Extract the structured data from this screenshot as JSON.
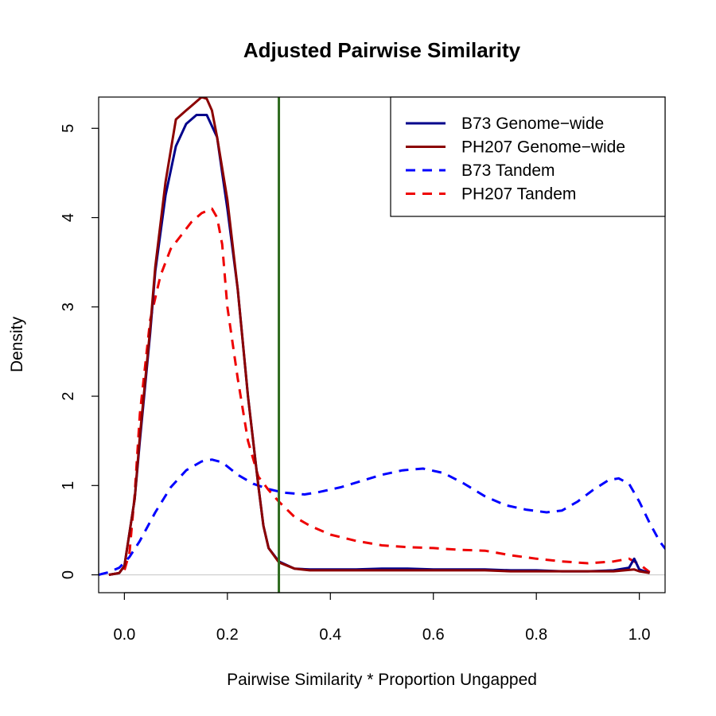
{
  "chart_data": {
    "type": "line",
    "title": "Adjusted Pairwise Similarity",
    "xlabel": "Pairwise Similarity * Proportion Ungapped",
    "ylabel": "Density",
    "xlim": [
      -0.05,
      1.05
    ],
    "ylim": [
      -0.2,
      5.35
    ],
    "xticks": [
      "0.0",
      "0.2",
      "0.4",
      "0.6",
      "0.8",
      "1.0"
    ],
    "yticks": [
      "0",
      "1",
      "2",
      "3",
      "4",
      "5"
    ],
    "reference_line": {
      "x": 0.3,
      "color": "#2e6b1f"
    },
    "baseline_color": "#cccccc",
    "legend_position": "top-right",
    "series": [
      {
        "name": "B73 Genome−wide",
        "color": "#00008b",
        "dash": false,
        "x": [
          -0.03,
          -0.01,
          0.0,
          0.02,
          0.03,
          0.05,
          0.06,
          0.08,
          0.1,
          0.12,
          0.14,
          0.16,
          0.18,
          0.19,
          0.2,
          0.22,
          0.24,
          0.26,
          0.27,
          0.28,
          0.3,
          0.33,
          0.36,
          0.4,
          0.45,
          0.5,
          0.55,
          0.6,
          0.65,
          0.7,
          0.75,
          0.8,
          0.85,
          0.9,
          0.95,
          0.98,
          0.99,
          1.0,
          1.02
        ],
        "y": [
          0.0,
          0.02,
          0.1,
          0.85,
          1.5,
          2.7,
          3.4,
          4.25,
          4.8,
          5.05,
          5.15,
          5.15,
          4.9,
          4.5,
          4.1,
          3.2,
          2.0,
          1.0,
          0.55,
          0.3,
          0.15,
          0.07,
          0.06,
          0.06,
          0.06,
          0.07,
          0.07,
          0.06,
          0.06,
          0.06,
          0.05,
          0.05,
          0.04,
          0.04,
          0.05,
          0.08,
          0.18,
          0.06,
          0.02
        ]
      },
      {
        "name": "PH207 Genome−wide",
        "color": "#8b0000",
        "dash": false,
        "x": [
          -0.03,
          -0.01,
          0.0,
          0.02,
          0.03,
          0.05,
          0.06,
          0.08,
          0.1,
          0.12,
          0.13,
          0.15,
          0.16,
          0.17,
          0.18,
          0.2,
          0.22,
          0.24,
          0.26,
          0.27,
          0.28,
          0.3,
          0.33,
          0.36,
          0.4,
          0.45,
          0.5,
          0.55,
          0.6,
          0.65,
          0.7,
          0.75,
          0.8,
          0.85,
          0.9,
          0.95,
          0.99,
          1.0,
          1.02
        ],
        "y": [
          0.0,
          0.02,
          0.1,
          0.85,
          1.55,
          2.75,
          3.45,
          4.4,
          5.1,
          5.2,
          5.25,
          5.35,
          5.33,
          5.2,
          4.9,
          4.2,
          3.2,
          2.0,
          1.0,
          0.55,
          0.3,
          0.14,
          0.07,
          0.05,
          0.05,
          0.05,
          0.05,
          0.05,
          0.05,
          0.05,
          0.05,
          0.04,
          0.04,
          0.04,
          0.04,
          0.04,
          0.06,
          0.04,
          0.02
        ]
      },
      {
        "name": "B73 Tandem",
        "color": "#0000ff",
        "dash": true,
        "x": [
          -0.05,
          -0.03,
          -0.01,
          0.01,
          0.03,
          0.06,
          0.09,
          0.12,
          0.15,
          0.17,
          0.19,
          0.22,
          0.25,
          0.28,
          0.31,
          0.35,
          0.38,
          0.42,
          0.46,
          0.5,
          0.54,
          0.58,
          0.62,
          0.66,
          0.7,
          0.74,
          0.78,
          0.82,
          0.85,
          0.88,
          0.91,
          0.94,
          0.96,
          0.98,
          1.0,
          1.02,
          1.04,
          1.06
        ],
        "y": [
          0.0,
          0.03,
          0.08,
          0.2,
          0.38,
          0.7,
          0.98,
          1.17,
          1.27,
          1.29,
          1.26,
          1.12,
          1.02,
          0.96,
          0.92,
          0.9,
          0.93,
          0.98,
          1.05,
          1.12,
          1.17,
          1.19,
          1.14,
          1.02,
          0.88,
          0.78,
          0.73,
          0.7,
          0.72,
          0.82,
          0.95,
          1.06,
          1.08,
          1.02,
          0.82,
          0.58,
          0.37,
          0.22
        ]
      },
      {
        "name": "PH207 Tandem",
        "color": "#ee0000",
        "dash": true,
        "x": [
          -0.03,
          -0.01,
          0.0,
          0.01,
          0.02,
          0.03,
          0.05,
          0.07,
          0.09,
          0.11,
          0.13,
          0.15,
          0.17,
          0.18,
          0.19,
          0.2,
          0.22,
          0.24,
          0.26,
          0.28,
          0.3,
          0.33,
          0.36,
          0.4,
          0.45,
          0.5,
          0.55,
          0.6,
          0.65,
          0.7,
          0.75,
          0.8,
          0.85,
          0.9,
          0.95,
          0.98,
          1.0,
          1.02
        ],
        "y": [
          0.0,
          0.02,
          0.05,
          0.25,
          0.9,
          1.8,
          2.85,
          3.35,
          3.65,
          3.8,
          3.95,
          4.05,
          4.1,
          4.0,
          3.7,
          3.0,
          2.2,
          1.5,
          1.1,
          0.95,
          0.82,
          0.65,
          0.55,
          0.45,
          0.38,
          0.33,
          0.31,
          0.3,
          0.28,
          0.27,
          0.22,
          0.18,
          0.15,
          0.13,
          0.15,
          0.18,
          0.12,
          0.03
        ]
      }
    ]
  }
}
